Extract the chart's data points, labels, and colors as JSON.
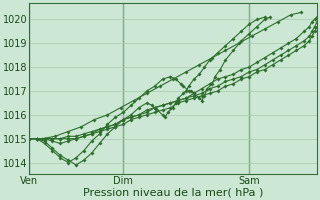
{
  "bg_color": "#cce8d4",
  "grid_color": "#a8cbb0",
  "line_color": "#2d6e2d",
  "marker_color": "#2d6e2d",
  "xlabel": "Pression niveau de la mer( hPa )",
  "xlabel_fontsize": 8,
  "tick_fontsize": 7,
  "ylim": [
    1013.5,
    1020.7
  ],
  "yticks": [
    1014,
    1015,
    1016,
    1017,
    1018,
    1019,
    1020
  ],
  "xtick_labels": [
    "Ven",
    "Dim",
    "Sam"
  ],
  "xtick_positions": [
    0,
    36,
    84
  ],
  "vline_positions": [
    0,
    36,
    84
  ],
  "xlim": [
    0,
    110
  ],
  "series": [
    [
      1015.0,
      1015.0,
      1015.1,
      1015.3,
      1015.5,
      1015.8,
      1016.0,
      1016.3,
      1016.6,
      1016.9,
      1017.2,
      1017.5,
      1017.8,
      1018.1,
      1018.4,
      1018.7,
      1019.0,
      1019.3,
      1019.6,
      1019.9,
      1020.2,
      1020.3
    ],
    [
      1015.0,
      1015.0,
      1014.8,
      1014.5,
      1014.2,
      1014.0,
      1014.2,
      1014.5,
      1014.9,
      1015.2,
      1015.6,
      1015.9,
      1016.1,
      1016.4,
      1016.7,
      1017.0,
      1017.2,
      1017.5,
      1017.6,
      1017.5,
      1017.3,
      1017.2,
      1017.0,
      1017.0,
      1016.9,
      1016.7,
      1016.6,
      1016.8,
      1017.1,
      1017.3,
      1017.6,
      1017.9,
      1018.3,
      1018.7,
      1019.1,
      1019.4,
      1019.7,
      1020.0,
      1020.1
    ],
    [
      1015.0,
      1015.0,
      1014.9,
      1014.6,
      1014.3,
      1014.1,
      1013.9,
      1014.1,
      1014.4,
      1014.8,
      1015.2,
      1015.5,
      1015.8,
      1016.0,
      1016.3,
      1016.5,
      1016.4,
      1016.3,
      1016.2,
      1016.0,
      1015.9,
      1016.1,
      1016.3,
      1016.5,
      1016.7,
      1016.9,
      1017.0,
      1017.2,
      1017.5,
      1017.7,
      1018.0,
      1018.3,
      1018.6,
      1018.9,
      1019.2,
      1019.5,
      1019.8,
      1020.0,
      1020.1
    ],
    [
      1015.0,
      1015.0,
      1015.0,
      1014.9,
      1014.8,
      1014.9,
      1015.0,
      1015.1,
      1015.2,
      1015.4,
      1015.5,
      1015.6,
      1015.8,
      1015.9,
      1016.0,
      1016.2,
      1016.3,
      1016.4,
      1016.5,
      1016.6,
      1016.7,
      1016.9,
      1017.1,
      1017.3,
      1017.5,
      1017.6,
      1017.7,
      1017.9,
      1018.0,
      1018.2,
      1018.4,
      1018.6,
      1018.8,
      1019.0,
      1019.2,
      1019.5,
      1019.7,
      1019.9,
      1020.0,
      1020.1
    ],
    [
      1015.0,
      1015.0,
      1015.0,
      1015.0,
      1015.0,
      1015.1,
      1015.1,
      1015.2,
      1015.3,
      1015.4,
      1015.5,
      1015.6,
      1015.8,
      1015.9,
      1016.0,
      1016.1,
      1016.3,
      1016.4,
      1016.5,
      1016.6,
      1016.7,
      1016.8,
      1016.9,
      1017.1,
      1017.2,
      1017.4,
      1017.5,
      1017.6,
      1017.8,
      1017.9,
      1018.1,
      1018.3,
      1018.5,
      1018.7,
      1018.9,
      1019.1,
      1019.3,
      1019.5,
      1019.7,
      1019.9,
      1020.0,
      1020.1
    ],
    [
      1015.0,
      1015.0,
      1015.0,
      1015.0,
      1015.0,
      1015.0,
      1015.0,
      1015.1,
      1015.2,
      1015.3,
      1015.4,
      1015.5,
      1015.6,
      1015.8,
      1015.9,
      1016.0,
      1016.1,
      1016.2,
      1016.3,
      1016.5,
      1016.6,
      1016.7,
      1016.8,
      1016.9,
      1017.0,
      1017.2,
      1017.3,
      1017.5,
      1017.6,
      1017.8,
      1017.9,
      1018.1,
      1018.3,
      1018.5,
      1018.7,
      1018.9,
      1019.1,
      1019.3,
      1019.5,
      1019.7,
      1019.9,
      1020.0
    ]
  ],
  "series_x": [
    [
      0,
      5,
      10,
      15,
      20,
      25,
      30,
      35,
      40,
      45,
      50,
      55,
      60,
      65,
      70,
      75,
      80,
      85,
      90,
      95,
      100,
      104
    ],
    [
      0,
      3,
      6,
      9,
      12,
      15,
      18,
      21,
      24,
      27,
      30,
      33,
      36,
      39,
      42,
      45,
      48,
      51,
      54,
      56,
      58,
      59,
      61,
      62,
      63,
      65,
      66,
      67,
      68,
      70,
      71,
      73,
      75,
      78,
      81,
      84,
      87,
      90,
      92
    ],
    [
      0,
      3,
      6,
      9,
      12,
      15,
      18,
      21,
      24,
      27,
      30,
      33,
      36,
      39,
      42,
      45,
      47,
      48,
      49,
      51,
      52,
      53,
      55,
      56,
      57,
      59,
      60,
      61,
      63,
      65,
      67,
      69,
      72,
      75,
      78,
      81,
      84,
      87,
      90
    ],
    [
      0,
      3,
      6,
      9,
      12,
      15,
      18,
      21,
      24,
      27,
      30,
      33,
      36,
      39,
      42,
      45,
      48,
      51,
      54,
      57,
      60,
      63,
      66,
      69,
      72,
      75,
      78,
      81,
      84,
      87,
      90,
      93,
      96,
      99,
      102,
      105,
      107,
      108,
      109,
      110
    ],
    [
      0,
      3,
      6,
      9,
      12,
      15,
      18,
      21,
      24,
      27,
      30,
      33,
      36,
      39,
      42,
      45,
      48,
      51,
      54,
      57,
      60,
      63,
      66,
      69,
      72,
      75,
      78,
      81,
      84,
      87,
      90,
      93,
      96,
      99,
      102,
      105,
      107,
      108,
      109,
      110,
      111,
      112
    ],
    [
      0,
      3,
      6,
      9,
      12,
      15,
      18,
      21,
      24,
      27,
      30,
      33,
      36,
      39,
      42,
      45,
      48,
      51,
      54,
      57,
      60,
      63,
      66,
      69,
      72,
      75,
      78,
      81,
      84,
      87,
      90,
      93,
      96,
      99,
      102,
      105,
      107,
      108,
      109,
      110,
      111,
      112
    ]
  ]
}
